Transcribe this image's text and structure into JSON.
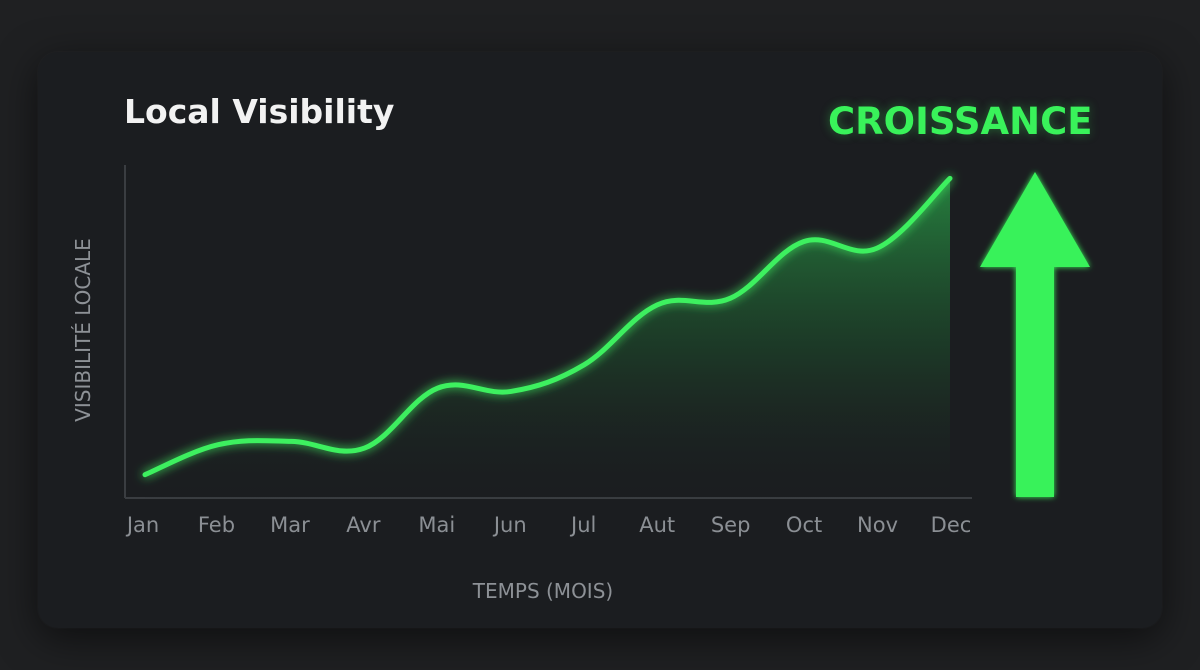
{
  "chart_data": {
    "type": "area",
    "title": "Local Visibility",
    "annotation": "CROISSANCE",
    "xlabel": "TEMPS (MOIS)",
    "ylabel": "VISIBILITÉ LOCALE",
    "categories": [
      "Jan",
      "Feb",
      "Mar",
      "Avr",
      "Mai",
      "Jun",
      "Jul",
      "Aut",
      "Sep",
      "Oct",
      "Nov",
      "Dec"
    ],
    "series": [
      {
        "values": [
          7,
          16,
          17,
          15,
          33,
          32,
          40,
          58,
          60,
          77,
          75,
          96
        ]
      }
    ],
    "ylim": [
      0,
      100
    ],
    "grid": false,
    "colors": {
      "line": "#3df05f",
      "arrow": "#39f25a",
      "axis": "#3a3d41"
    }
  }
}
